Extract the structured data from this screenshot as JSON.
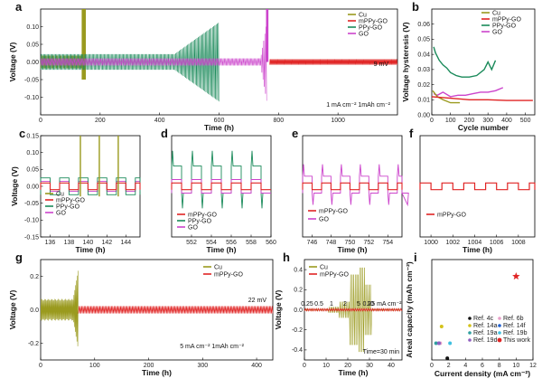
{
  "colors": {
    "cu": "#9a9a1e",
    "mppy": "#e02424",
    "ppy": "#1a8a5a",
    "go": "#cc44cc"
  },
  "chart_data": [
    {
      "panel": "a",
      "type": "line",
      "xlabel": "Time (h)",
      "ylabel": "Voltage (V)",
      "xlim": [
        0,
        1200
      ],
      "ylim": [
        -0.15,
        0.15
      ],
      "xticks": [
        "0",
        "200",
        "400",
        "600",
        "800",
        "1000"
      ],
      "yticks": [
        "0.10",
        "0.05",
        "0.00",
        "-0.05",
        "-0.10"
      ],
      "legend": [
        "Cu",
        "mPPy-GO",
        "PPy-GO",
        "GO"
      ],
      "annotations": {
        "overpotential": "9 mV",
        "condition": "1 mA cm⁻² 1mAh cm⁻²"
      },
      "series": [
        {
          "name": "Cu",
          "short_circuit_h": 150
        },
        {
          "name": "GO",
          "short_circuit_h": 760
        },
        {
          "name": "PPy-GO",
          "short_circuit_h": 600
        },
        {
          "name": "mPPy-GO",
          "end_h": 1200
        }
      ]
    },
    {
      "panel": "b",
      "type": "line",
      "xlabel": "Cycle number",
      "ylabel": "Voltage hysteresis (V)",
      "xlim": [
        0,
        550
      ],
      "ylim": [
        0,
        0.07
      ],
      "xticks": [
        "0",
        "100",
        "200",
        "300",
        "400",
        "500"
      ],
      "yticks": [
        "0.06",
        "0.05",
        "0.04",
        "0.03",
        "0.02",
        "0.01",
        "0.00"
      ],
      "legend": [
        "Cu",
        "mPPy-GO",
        "PPy-GO",
        "GO"
      ],
      "series": [
        {
          "name": "PPy-GO",
          "x": [
            10,
            20,
            40,
            60,
            80,
            100,
            130,
            160,
            200,
            240,
            280,
            300,
            320,
            340
          ],
          "y": [
            0.045,
            0.041,
            0.036,
            0.033,
            0.031,
            0.028,
            0.026,
            0.025,
            0.025,
            0.026,
            0.03,
            0.035,
            0.03,
            0.036
          ]
        },
        {
          "name": "GO",
          "x": [
            10,
            30,
            60,
            100,
            140,
            180,
            220,
            260,
            300,
            340,
            380
          ],
          "y": [
            0.014,
            0.013,
            0.015,
            0.012,
            0.013,
            0.013,
            0.014,
            0.015,
            0.015,
            0.016,
            0.018
          ]
        },
        {
          "name": "Cu",
          "x": [
            5,
            30,
            60,
            100,
            150
          ],
          "y": [
            0.016,
            0.012,
            0.01,
            0.008,
            0.008
          ]
        },
        {
          "name": "mPPy-GO",
          "x": [
            0,
            100,
            200,
            300,
            400,
            500,
            540
          ],
          "y": [
            0.012,
            0.011,
            0.01,
            0.01,
            0.0095,
            0.0095,
            0.0095
          ]
        }
      ]
    },
    {
      "panel": "c",
      "type": "line",
      "xlabel": "Time (h)",
      "ylabel": "Voltage (V)",
      "xlim": [
        135,
        145.5
      ],
      "ylim": [
        -0.15,
        0.15
      ],
      "xticks": [
        "136",
        "138",
        "140",
        "142",
        "144"
      ],
      "yticks": [
        "0.15",
        "0.10",
        "0.05",
        "0.00",
        "-0.05",
        "-0.10",
        "-0.15"
      ],
      "legend": [
        "Cu",
        "mPPy-GO",
        "PPy-GO",
        "GO"
      ]
    },
    {
      "panel": "d",
      "type": "line",
      "xlabel": "Time (h)",
      "ylabel": "",
      "xlim": [
        550,
        560
      ],
      "ylim": [
        -0.15,
        0.15
      ],
      "xticks": [
        "552",
        "554",
        "556",
        "558",
        "560"
      ],
      "legend": [
        "mPPy-GO",
        "PPy-GO",
        "GO"
      ]
    },
    {
      "panel": "e",
      "type": "line",
      "xlabel": "Time (h)",
      "ylabel": "",
      "xlim": [
        745,
        755.5
      ],
      "ylim": [
        -0.15,
        0.15
      ],
      "xticks": [
        "746",
        "748",
        "750",
        "752",
        "754"
      ],
      "legend": [
        "mPPy-GO",
        "GO"
      ]
    },
    {
      "panel": "f",
      "type": "line",
      "xlabel": "Time (h)",
      "ylabel": "",
      "xlim": [
        999,
        1009.5
      ],
      "ylim": [
        -0.15,
        0.15
      ],
      "xticks": [
        "1000",
        "1002",
        "1004",
        "1006",
        "1008"
      ],
      "legend": [
        "mPPy-GO"
      ]
    },
    {
      "panel": "g",
      "type": "line",
      "xlabel": "Time (h)",
      "ylabel": "Voltage (V)",
      "xlim": [
        0,
        430
      ],
      "ylim": [
        -0.3,
        0.3
      ],
      "xticks": [
        "0",
        "100",
        "200",
        "300",
        "400"
      ],
      "yticks": [
        "0.2",
        "0.0",
        "-0.2"
      ],
      "legend": [
        "Cu",
        "mPPy-GO"
      ],
      "annotations": {
        "overpotential": "22 mV",
        "condition": "5 mA cm⁻² 1mAh cm⁻²"
      },
      "series": [
        {
          "name": "Cu",
          "short_circuit_h": 70
        },
        {
          "name": "mPPy-GO",
          "end_h": 430
        }
      ]
    },
    {
      "panel": "h",
      "type": "line",
      "xlabel": "Time (h)",
      "ylabel": "Voltage (V)",
      "xlim": [
        0,
        45
      ],
      "ylim": [
        -0.5,
        0.5
      ],
      "xticks": [
        "0",
        "10",
        "20",
        "30",
        "40"
      ],
      "yticks": [
        "0.4",
        "0.2",
        "0.0",
        "-0.2",
        "-0.4"
      ],
      "legend": [
        "Cu",
        "mPPy-GO"
      ],
      "rate_labels": [
        "0.25",
        "0.5",
        "1",
        "2",
        "5",
        "10",
        "0.25 mA cm⁻²"
      ],
      "annotations": {
        "step": "Time=30 min"
      }
    },
    {
      "panel": "i",
      "type": "scatter",
      "xlabel": "Current density (mA cm⁻²)",
      "ylabel": "Areal capacity (mAh cm⁻²)",
      "xlim": [
        0,
        12
      ],
      "ylim": [
        0,
        6
      ],
      "xticks": [
        "0",
        "2",
        "4",
        "6",
        "8",
        "10",
        "12"
      ],
      "points": [
        {
          "name": "Ref. 4c",
          "x": 2,
          "y": 0.1,
          "color": "#111111"
        },
        {
          "name": "Ref. 6b",
          "x": 1,
          "y": 1,
          "color": "#e8a0c8"
        },
        {
          "name": "Ref. 14a",
          "x": 1,
          "y": 2,
          "color": "#d4c21a"
        },
        {
          "name": "Ref. 14f",
          "x": 1,
          "y": 1,
          "color": "#2060d0"
        },
        {
          "name": "Ref. 19a",
          "x": 0.5,
          "y": 1,
          "color": "#30a0a0"
        },
        {
          "name": "Ref. 19b",
          "x": 2,
          "y": 1,
          "color": "#40c0e0"
        },
        {
          "name": "Ref. 19d",
          "x": 1,
          "y": 1,
          "color": "#9060c0"
        },
        {
          "name": "This work",
          "x": 10,
          "y": 5,
          "color": "#e02424"
        }
      ]
    }
  ]
}
